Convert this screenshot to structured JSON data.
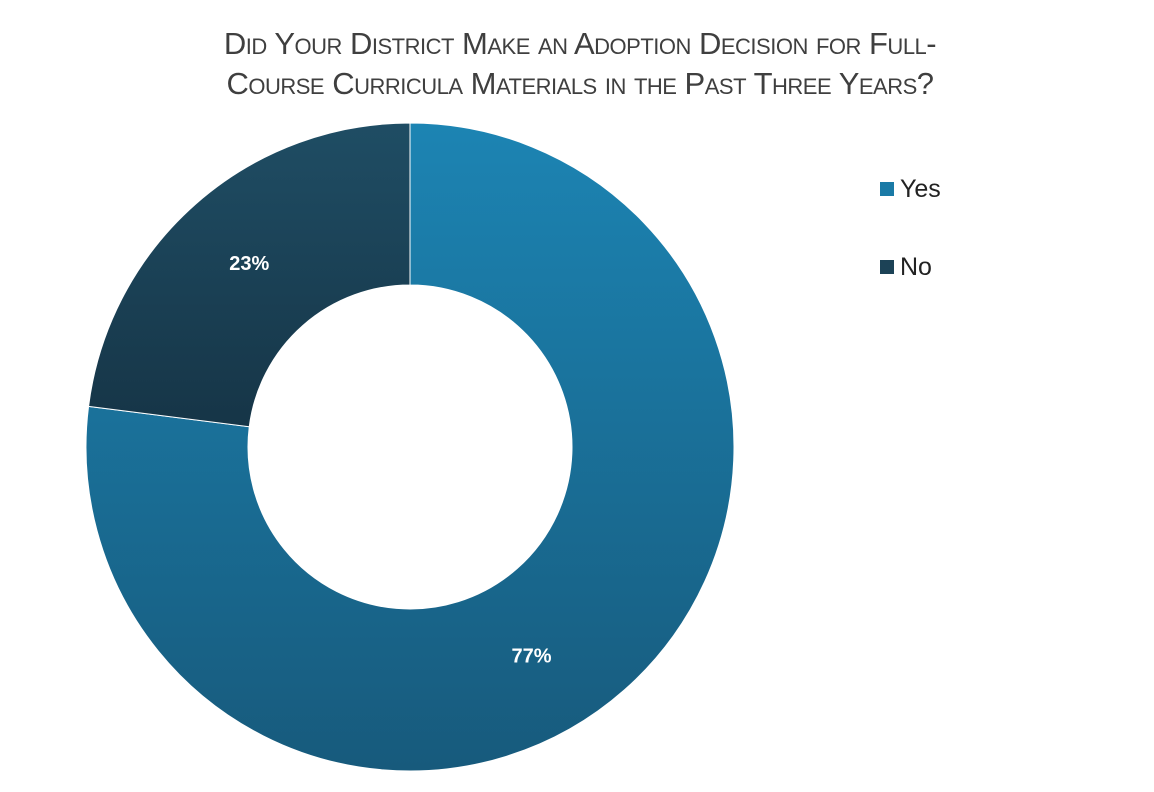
{
  "chart_data": {
    "type": "pie",
    "variant": "donut",
    "title_lines": [
      "Did Your District Make an Adoption Decision for Full-",
      "Course Curricula Materials in the Past Three Years?"
    ],
    "categories": [
      "Yes",
      "No"
    ],
    "values": [
      77,
      23
    ],
    "data_labels": [
      "77%",
      "23%"
    ],
    "colors": [
      "#1a7aa6",
      "#1c4256"
    ],
    "gradient_colors": [
      {
        "top": "#1c84b3",
        "bottom": "#175a7c"
      },
      {
        "top": "#1f4d64",
        "bottom": "#163547"
      }
    ],
    "start_angle_deg": 0,
    "direction": "clockwise",
    "legend_placement": "right"
  }
}
